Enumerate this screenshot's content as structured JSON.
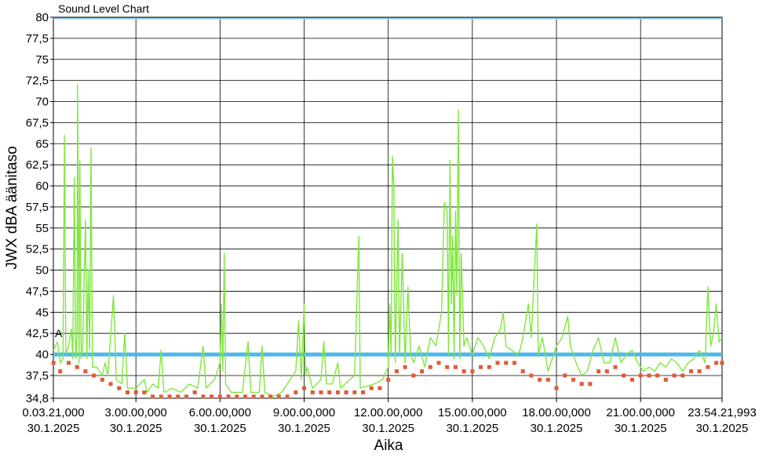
{
  "chart_data": {
    "type": "line",
    "title": "Sound Level Chart",
    "xlabel": "Aika",
    "ylabel": "JWX dBA äänitaso",
    "ylim": [
      34.8,
      80
    ],
    "xlim": [
      "0.03.21,000",
      "23.54.21,993"
    ],
    "y_ticks": [
      "80",
      "77,5",
      "75",
      "72,5",
      "70",
      "67,5",
      "65",
      "62,5",
      "60",
      "57,5",
      "55",
      "52,5",
      "50",
      "47,5",
      "45",
      "42,5",
      "40",
      "37,5",
      "34,8"
    ],
    "x_ticks": [
      {
        "time": "0.03.21,000",
        "date": "30.1.2025",
        "hour": 0.056
      },
      {
        "time": "3.00.00,000",
        "date": "30.1.2025",
        "hour": 3
      },
      {
        "time": "6.00.00,000",
        "date": "30.1.2025",
        "hour": 6
      },
      {
        "time": "9.00.00,000",
        "date": "30.1.2025",
        "hour": 9
      },
      {
        "time": "12.00.00,000",
        "date": "30.1.2025",
        "hour": 12
      },
      {
        "time": "15.00.00,000",
        "date": "30.1.2025",
        "hour": 15
      },
      {
        "time": "18.00.00,000",
        "date": "30.1.2025",
        "hour": 18
      },
      {
        "time": "21.00.00,000",
        "date": "30.1.2025",
        "hour": 21
      },
      {
        "time": "23.54.21,993",
        "date": "30.1.2025",
        "hour": 23.906
      }
    ],
    "grid": true,
    "threshold": {
      "value": 40,
      "label": "A",
      "color": "#4db8ec"
    },
    "series": [
      {
        "color": "#7ee83a",
        "style": "line",
        "points": [
          [
            0.06,
            40.5
          ],
          [
            0.2,
            41.5
          ],
          [
            0.3,
            39
          ],
          [
            0.4,
            39.5
          ],
          [
            0.45,
            66
          ],
          [
            0.5,
            40
          ],
          [
            0.6,
            41
          ],
          [
            0.7,
            43
          ],
          [
            0.75,
            39.5
          ],
          [
            0.8,
            61
          ],
          [
            0.85,
            39.5
          ],
          [
            0.9,
            42
          ],
          [
            0.92,
            72
          ],
          [
            0.97,
            39
          ],
          [
            1.0,
            63
          ],
          [
            1.05,
            39.5
          ],
          [
            1.1,
            40.5
          ],
          [
            1.2,
            56
          ],
          [
            1.25,
            39.5
          ],
          [
            1.3,
            50
          ],
          [
            1.35,
            40.5
          ],
          [
            1.4,
            64.5
          ],
          [
            1.45,
            38.5
          ],
          [
            1.6,
            38.5
          ],
          [
            1.8,
            37.5
          ],
          [
            1.9,
            39
          ],
          [
            2.0,
            37.5
          ],
          [
            2.2,
            47
          ],
          [
            2.3,
            37
          ],
          [
            2.5,
            36.5
          ],
          [
            2.6,
            42.5
          ],
          [
            2.7,
            36
          ],
          [
            3.0,
            36
          ],
          [
            3.3,
            37
          ],
          [
            3.4,
            35.5
          ],
          [
            3.6,
            36.5
          ],
          [
            3.8,
            36
          ],
          [
            3.9,
            40.5
          ],
          [
            4.0,
            35.5
          ],
          [
            4.3,
            36
          ],
          [
            4.6,
            35.5
          ],
          [
            4.9,
            36.5
          ],
          [
            5.2,
            36
          ],
          [
            5.4,
            41
          ],
          [
            5.5,
            36
          ],
          [
            5.8,
            37
          ],
          [
            6.0,
            39
          ],
          [
            6.05,
            46
          ],
          [
            6.1,
            38
          ],
          [
            6.15,
            52
          ],
          [
            6.2,
            36.5
          ],
          [
            6.4,
            35.5
          ],
          [
            6.8,
            35.5
          ],
          [
            7.0,
            41.5
          ],
          [
            7.1,
            35.5
          ],
          [
            7.4,
            35.5
          ],
          [
            7.5,
            41
          ],
          [
            7.6,
            35.5
          ],
          [
            7.9,
            35
          ],
          [
            8.2,
            35.5
          ],
          [
            8.5,
            37
          ],
          [
            8.7,
            38
          ],
          [
            8.8,
            44
          ],
          [
            8.9,
            37
          ],
          [
            9.0,
            46
          ],
          [
            9.05,
            37.5
          ],
          [
            9.1,
            38.5
          ],
          [
            9.3,
            36
          ],
          [
            9.6,
            37
          ],
          [
            9.7,
            41.5
          ],
          [
            9.8,
            36.5
          ],
          [
            10.0,
            36.5
          ],
          [
            10.2,
            39
          ],
          [
            10.3,
            36
          ],
          [
            10.8,
            37.5
          ],
          [
            10.95,
            54
          ],
          [
            11.0,
            36
          ],
          [
            11.5,
            36.5
          ],
          [
            11.8,
            37
          ],
          [
            12.0,
            38.5
          ],
          [
            12.05,
            46
          ],
          [
            12.1,
            40
          ],
          [
            12.15,
            63.5
          ],
          [
            12.2,
            60
          ],
          [
            12.25,
            39
          ],
          [
            12.3,
            48
          ],
          [
            12.35,
            56
          ],
          [
            12.4,
            40
          ],
          [
            12.5,
            52
          ],
          [
            12.6,
            39
          ],
          [
            12.7,
            48
          ],
          [
            12.8,
            40
          ],
          [
            12.9,
            39
          ],
          [
            13.1,
            41
          ],
          [
            13.3,
            38.5
          ],
          [
            13.5,
            42
          ],
          [
            13.7,
            41
          ],
          [
            13.9,
            45
          ],
          [
            14.0,
            58
          ],
          [
            14.1,
            57
          ],
          [
            14.15,
            40
          ],
          [
            14.2,
            63
          ],
          [
            14.25,
            46
          ],
          [
            14.3,
            54
          ],
          [
            14.35,
            39.5
          ],
          [
            14.4,
            57
          ],
          [
            14.45,
            47
          ],
          [
            14.5,
            69
          ],
          [
            14.55,
            39.5
          ],
          [
            14.6,
            52
          ],
          [
            14.7,
            41
          ],
          [
            14.8,
            42
          ],
          [
            15.0,
            40
          ],
          [
            15.2,
            42
          ],
          [
            15.4,
            41
          ],
          [
            15.6,
            39.5
          ],
          [
            15.8,
            42
          ],
          [
            16.0,
            43
          ],
          [
            16.1,
            45
          ],
          [
            16.2,
            41
          ],
          [
            16.4,
            40.5
          ],
          [
            16.6,
            40
          ],
          [
            16.7,
            40.5
          ],
          [
            16.8,
            42
          ],
          [
            17.0,
            46
          ],
          [
            17.1,
            42
          ],
          [
            17.3,
            55.5
          ],
          [
            17.35,
            40
          ],
          [
            17.5,
            42
          ],
          [
            17.7,
            38
          ],
          [
            18.0,
            41
          ],
          [
            18.2,
            42
          ],
          [
            18.4,
            44.5
          ],
          [
            18.5,
            41
          ],
          [
            18.7,
            39
          ],
          [
            18.9,
            37.5
          ],
          [
            19.1,
            38
          ],
          [
            19.3,
            40.5
          ],
          [
            19.5,
            42
          ],
          [
            19.7,
            39
          ],
          [
            19.9,
            39
          ],
          [
            20.1,
            42
          ],
          [
            20.3,
            39
          ],
          [
            20.5,
            40
          ],
          [
            20.7,
            40.5
          ],
          [
            20.9,
            39
          ],
          [
            21.1,
            38
          ],
          [
            21.3,
            38.5
          ],
          [
            21.5,
            38
          ],
          [
            21.7,
            39
          ],
          [
            21.9,
            38.5
          ],
          [
            22.1,
            39.5
          ],
          [
            22.3,
            39
          ],
          [
            22.5,
            38
          ],
          [
            22.7,
            39
          ],
          [
            22.9,
            39.5
          ],
          [
            23.1,
            40.5
          ],
          [
            23.3,
            39
          ],
          [
            23.4,
            48
          ],
          [
            23.5,
            41
          ],
          [
            23.6,
            42.5
          ],
          [
            23.7,
            46
          ],
          [
            23.8,
            41.5
          ],
          [
            23.906,
            42
          ]
        ]
      },
      {
        "color": "#e05a38",
        "style": "markers",
        "points": [
          [
            0.06,
            39
          ],
          [
            0.3,
            38
          ],
          [
            0.6,
            39
          ],
          [
            0.9,
            38.5
          ],
          [
            1.2,
            38
          ],
          [
            1.5,
            37.5
          ],
          [
            1.8,
            37
          ],
          [
            2.1,
            36.5
          ],
          [
            2.4,
            36
          ],
          [
            2.7,
            35.5
          ],
          [
            3.0,
            35.5
          ],
          [
            3.3,
            35.5
          ],
          [
            3.6,
            35
          ],
          [
            3.9,
            35
          ],
          [
            4.2,
            35
          ],
          [
            4.5,
            35
          ],
          [
            4.8,
            35
          ],
          [
            5.1,
            35.5
          ],
          [
            5.4,
            35
          ],
          [
            5.7,
            35
          ],
          [
            6.0,
            35
          ],
          [
            6.3,
            35
          ],
          [
            6.6,
            35
          ],
          [
            6.9,
            35
          ],
          [
            7.2,
            35
          ],
          [
            7.5,
            35
          ],
          [
            7.8,
            35
          ],
          [
            8.1,
            35
          ],
          [
            8.4,
            35
          ],
          [
            8.7,
            35.5
          ],
          [
            9.0,
            36
          ],
          [
            9.3,
            35.5
          ],
          [
            9.6,
            35.5
          ],
          [
            9.9,
            35.5
          ],
          [
            10.2,
            35.5
          ],
          [
            10.5,
            35.5
          ],
          [
            10.8,
            35.5
          ],
          [
            11.1,
            35.5
          ],
          [
            11.4,
            36
          ],
          [
            11.7,
            36
          ],
          [
            12.0,
            37
          ],
          [
            12.3,
            38
          ],
          [
            12.6,
            38.5
          ],
          [
            12.9,
            37.5
          ],
          [
            13.2,
            38
          ],
          [
            13.5,
            38.5
          ],
          [
            13.8,
            39
          ],
          [
            14.1,
            38.5
          ],
          [
            14.4,
            38.5
          ],
          [
            14.7,
            38
          ],
          [
            15.0,
            38
          ],
          [
            15.3,
            38.5
          ],
          [
            15.6,
            38.5
          ],
          [
            15.9,
            39
          ],
          [
            16.2,
            39
          ],
          [
            16.5,
            39
          ],
          [
            16.8,
            38
          ],
          [
            17.1,
            37.5
          ],
          [
            17.4,
            37
          ],
          [
            17.7,
            37
          ],
          [
            18.0,
            36
          ],
          [
            18.3,
            37.5
          ],
          [
            18.6,
            37
          ],
          [
            18.9,
            36.5
          ],
          [
            19.2,
            36.5
          ],
          [
            19.5,
            38
          ],
          [
            19.8,
            38
          ],
          [
            20.1,
            38.5
          ],
          [
            20.4,
            37.5
          ],
          [
            20.7,
            37
          ],
          [
            21.0,
            37.5
          ],
          [
            21.3,
            37.5
          ],
          [
            21.6,
            37.5
          ],
          [
            21.9,
            37
          ],
          [
            22.2,
            37.5
          ],
          [
            22.5,
            37.5
          ],
          [
            22.8,
            38
          ],
          [
            23.1,
            38
          ],
          [
            23.4,
            38.5
          ],
          [
            23.7,
            39
          ],
          [
            23.906,
            39
          ]
        ]
      }
    ]
  }
}
